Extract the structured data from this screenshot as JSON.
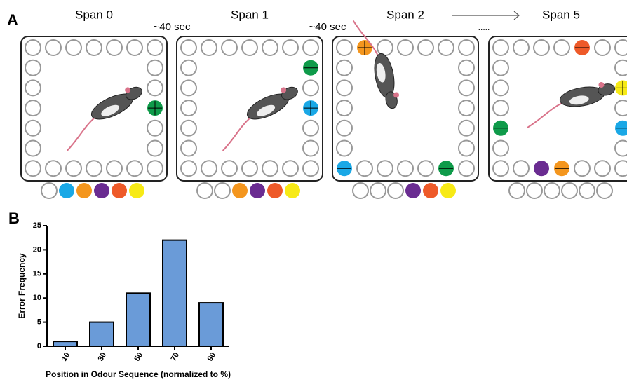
{
  "panel_a": {
    "label": "A",
    "spans": [
      "Span 0",
      "Span 1",
      "Span 2",
      "Span 5"
    ],
    "intervals": [
      "~40 sec",
      "~40 sec"
    ],
    "ellipsis": "....."
  },
  "chart_data": {
    "type": "bar",
    "panel_label": "B",
    "x_label": "Position in Odour Sequence (normalized to %)",
    "y_label": "Error Frequency",
    "categories": [
      "10",
      "30",
      "50",
      "70",
      "90"
    ],
    "values": [
      1,
      5,
      11,
      22,
      9
    ],
    "color": "#6a9bd8",
    "ylim": [
      0,
      25
    ],
    "yticks": [
      0,
      5,
      10,
      15,
      20,
      25
    ]
  }
}
